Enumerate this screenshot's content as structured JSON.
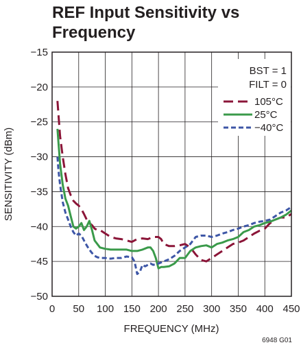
{
  "chart_data": {
    "type": "line",
    "title_lines": [
      "REF Input Sensitivity vs",
      "Frequency"
    ],
    "xlabel": "FREQUENCY (MHz)",
    "ylabel": "SENSITIVITY (dBm)",
    "xlim": [
      0,
      450
    ],
    "ylim": [
      -50,
      -15
    ],
    "xticks": [
      0,
      50,
      100,
      150,
      200,
      250,
      300,
      350,
      400,
      450
    ],
    "yticks": [
      -15,
      -20,
      -25,
      -30,
      -35,
      -40,
      -45,
      -50
    ],
    "xtick_labels": [
      "0",
      "50",
      "100",
      "150",
      "200",
      "250",
      "300",
      "350",
      "400",
      "450"
    ],
    "ytick_labels": [
      "−15",
      "−20",
      "−25",
      "−30",
      "−35",
      "−40",
      "−45",
      "−50"
    ],
    "grid": true,
    "conditions": [
      "BST = 1",
      "FILT = 0"
    ],
    "legend_position": "top-right",
    "series": [
      {
        "name": "105°C",
        "color": "#8b1538",
        "dash": "long-dash",
        "x": [
          10,
          12,
          15,
          20,
          25,
          30,
          35,
          40,
          45,
          50,
          55,
          60,
          65,
          70,
          75,
          80,
          85,
          90,
          100,
          110,
          120,
          130,
          140,
          150,
          155,
          160,
          170,
          180,
          190,
          200,
          205,
          210,
          220,
          230,
          240,
          250,
          260,
          270,
          280,
          290,
          300,
          310,
          320,
          330,
          340,
          350,
          360,
          370,
          380,
          390,
          400,
          410,
          420,
          430,
          440,
          450
        ],
        "y": [
          -22,
          -24,
          -27,
          -30,
          -32.5,
          -34.5,
          -35.5,
          -36.3,
          -36.7,
          -37,
          -37.5,
          -38.2,
          -39,
          -39.5,
          -39.8,
          -40.3,
          -40.5,
          -40.5,
          -41,
          -41.5,
          -41.7,
          -41.8,
          -42,
          -42.2,
          -42,
          -41.8,
          -41.7,
          -41.8,
          -41.5,
          -41.5,
          -41.8,
          -42.5,
          -42.8,
          -42.8,
          -42.7,
          -42.5,
          -43,
          -44,
          -44.8,
          -45,
          -44.5,
          -44,
          -43.5,
          -43,
          -42.5,
          -42.3,
          -42,
          -41.5,
          -41,
          -40.6,
          -40.3,
          -39.5,
          -39,
          -38.7,
          -38.7,
          -38.2
        ]
      },
      {
        "name": "25°C",
        "color": "#3a9a4a",
        "dash": "solid",
        "x": [
          10,
          12,
          15,
          20,
          25,
          30,
          35,
          40,
          45,
          50,
          55,
          60,
          65,
          70,
          75,
          80,
          90,
          100,
          110,
          120,
          130,
          140,
          150,
          160,
          170,
          180,
          185,
          190,
          195,
          200,
          205,
          210,
          220,
          230,
          240,
          250,
          260,
          270,
          280,
          290,
          300,
          310,
          320,
          330,
          340,
          350,
          360,
          370,
          380,
          390,
          400,
          410,
          420,
          430,
          440,
          450
        ],
        "y": [
          -26,
          -28,
          -31,
          -34,
          -36,
          -37,
          -38.5,
          -40,
          -40.3,
          -40,
          -39.5,
          -40.5,
          -40,
          -39.2,
          -40.5,
          -42,
          -43,
          -43.2,
          -43.3,
          -43.3,
          -43.3,
          -43.3,
          -43.5,
          -43.5,
          -43.3,
          -43,
          -43,
          -43.5,
          -44.5,
          -46,
          -45.8,
          -45.8,
          -45.7,
          -45.3,
          -44.5,
          -44.5,
          -43.5,
          -43,
          -42.8,
          -42.7,
          -43,
          -42.5,
          -42.3,
          -42,
          -41.8,
          -41.5,
          -40.8,
          -40.5,
          -40,
          -39.8,
          -39.5,
          -39.3,
          -39,
          -38.7,
          -38.3,
          -37.7
        ]
      },
      {
        "name": "−40°C",
        "color": "#3d56a6",
        "dash": "short-dash",
        "x": [
          10,
          12,
          15,
          20,
          25,
          30,
          35,
          40,
          45,
          50,
          55,
          60,
          65,
          70,
          75,
          80,
          85,
          90,
          100,
          110,
          120,
          130,
          140,
          150,
          155,
          160,
          165,
          170,
          175,
          180,
          185,
          190,
          200,
          210,
          220,
          230,
          240,
          250,
          260,
          270,
          280,
          290,
          300,
          310,
          320,
          330,
          340,
          350,
          360,
          370,
          380,
          390,
          400,
          410,
          420,
          430,
          440,
          450
        ],
        "y": [
          -30,
          -32,
          -34,
          -36.5,
          -38,
          -39,
          -40,
          -40.8,
          -41.3,
          -41,
          -41.3,
          -42,
          -42.7,
          -43.3,
          -43.8,
          -44.2,
          -44.4,
          -44.5,
          -44.5,
          -44.6,
          -44.5,
          -44.5,
          -44.3,
          -44.4,
          -45,
          -46.8,
          -46.5,
          -45.5,
          -45.7,
          -45.5,
          -45.3,
          -45.5,
          -45.3,
          -45,
          -44.7,
          -44.2,
          -43.5,
          -43,
          -42.5,
          -41.5,
          -41.3,
          -41.3,
          -41.5,
          -41.3,
          -41,
          -40.8,
          -40.5,
          -40.3,
          -40,
          -39.8,
          -39.5,
          -39.3,
          -39.2,
          -39,
          -38.5,
          -38,
          -37.7,
          -37.2
        ]
      }
    ]
  },
  "figure_id": "6948 G01"
}
